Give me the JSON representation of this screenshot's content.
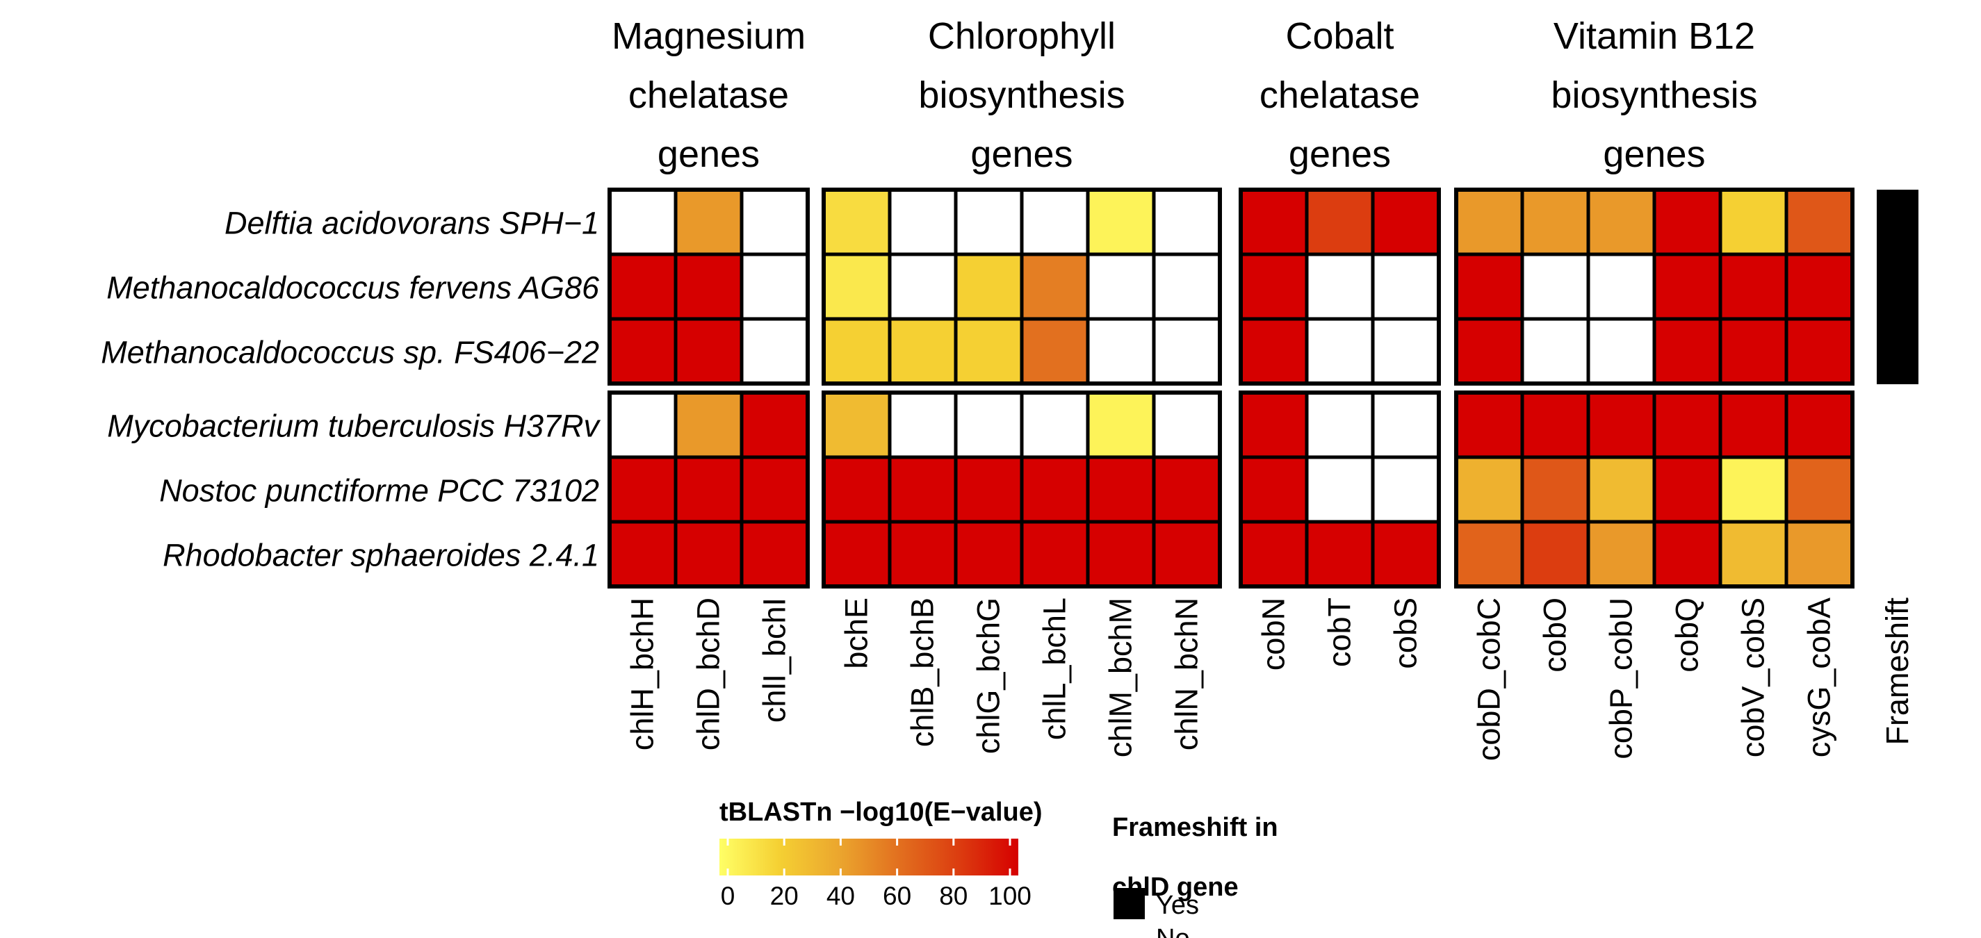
{
  "chart_data": {
    "type": "heatmap",
    "groups": [
      {
        "title_lines": [
          "Magnesium",
          "chelatase",
          "genes"
        ],
        "genes": [
          "chlH_bchH",
          "chlD_bchD",
          "chlI_bchI"
        ]
      },
      {
        "title_lines": [
          "Chlorophyll",
          "biosynthesis",
          "genes"
        ],
        "genes": [
          "bchE",
          "chlB_bchB",
          "chlG_bchG",
          "chlL_bchL",
          "chlM_bchM",
          "chlN_bchN"
        ]
      },
      {
        "title_lines": [
          "Cobalt",
          "chelatase",
          "genes"
        ],
        "genes": [
          "cobN",
          "cobT",
          "cobS"
        ]
      },
      {
        "title_lines": [
          "Vitamin B12",
          "biosynthesis",
          "genes"
        ],
        "genes": [
          "cobD_cobC",
          "cobO",
          "cobP_cobU",
          "cobQ",
          "cobV_cobS",
          "cysG_cobA"
        ]
      }
    ],
    "rows": [
      {
        "label": "Delftia acidovorans SPH−1",
        "frameshift": true,
        "values": [
          null,
          45,
          null,
          15,
          null,
          null,
          null,
          5,
          null,
          100,
          80,
          100,
          45,
          45,
          45,
          100,
          20,
          70
        ]
      },
      {
        "label": "Methanocaldococcus fervens AG86",
        "frameshift": true,
        "values": [
          100,
          100,
          null,
          10,
          null,
          20,
          55,
          null,
          null,
          100,
          null,
          null,
          100,
          null,
          null,
          100,
          100,
          100
        ]
      },
      {
        "label": "Methanocaldococcus sp. FS406−22",
        "frameshift": true,
        "values": [
          100,
          100,
          null,
          20,
          20,
          20,
          60,
          null,
          null,
          100,
          null,
          null,
          100,
          null,
          null,
          100,
          100,
          100
        ]
      },
      {
        "label": "Mycobacterium tuberculosis H37Rv",
        "frameshift": false,
        "values": [
          null,
          45,
          100,
          30,
          null,
          null,
          null,
          5,
          null,
          100,
          null,
          null,
          100,
          100,
          100,
          100,
          100,
          100
        ]
      },
      {
        "label": "Nostoc punctiforme PCC 73102",
        "frameshift": false,
        "values": [
          100,
          100,
          100,
          100,
          100,
          100,
          100,
          100,
          100,
          100,
          null,
          null,
          35,
          70,
          30,
          100,
          5,
          65
        ]
      },
      {
        "label": "Rhodobacter sphaeroides 2.4.1",
        "frameshift": false,
        "values": [
          100,
          100,
          100,
          100,
          100,
          100,
          100,
          100,
          100,
          100,
          100,
          100,
          65,
          80,
          45,
          100,
          30,
          45
        ]
      }
    ],
    "frameshift_column_label": "Frameshift",
    "colorbar": {
      "title": "tBLASTn −log10(E−value)",
      "ticks": [
        0,
        20,
        40,
        60,
        80,
        100
      ],
      "range": [
        0,
        100
      ],
      "colors": [
        "#ffff66",
        "#f5d033",
        "#eba62e",
        "#e2701f",
        "#dc3d10",
        "#d60000"
      ]
    },
    "frameshift_legend": {
      "title": "Frameshift in chlD gene",
      "entries": [
        {
          "label": "Yes",
          "color": "#000000"
        },
        {
          "label": "No",
          "color": "#ffffff"
        }
      ]
    }
  }
}
